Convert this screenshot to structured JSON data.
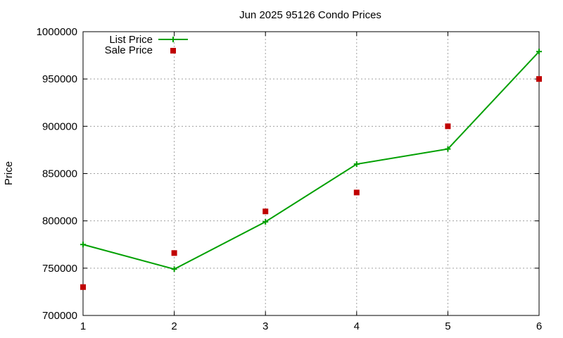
{
  "chart_data": {
    "type": "line",
    "title": "Jun 2025 95126 Condo Prices",
    "xlabel": "",
    "ylabel": "Price",
    "x": [
      1,
      2,
      3,
      4,
      5,
      6
    ],
    "xlim": [
      1,
      6
    ],
    "ylim": [
      700000,
      1000000
    ],
    "xticks": [
      "1",
      "2",
      "3",
      "4",
      "5",
      "6"
    ],
    "yticks": [
      700000,
      750000,
      800000,
      850000,
      900000,
      950000,
      1000000
    ],
    "ytick_labels": [
      "700000",
      "750000",
      "800000",
      "850000",
      "900000",
      "950000",
      "1000000"
    ],
    "grid": true,
    "legend_position": "top-left",
    "series": [
      {
        "name": "List Price",
        "style": "line-with-plus-markers",
        "color": "#00a000",
        "values": [
          775000,
          749000,
          799000,
          860000,
          876000,
          979000
        ]
      },
      {
        "name": "Sale Price",
        "style": "square-points",
        "color": "#c00000",
        "values": [
          730000,
          766000,
          810000,
          830000,
          900000,
          950000
        ]
      }
    ]
  }
}
